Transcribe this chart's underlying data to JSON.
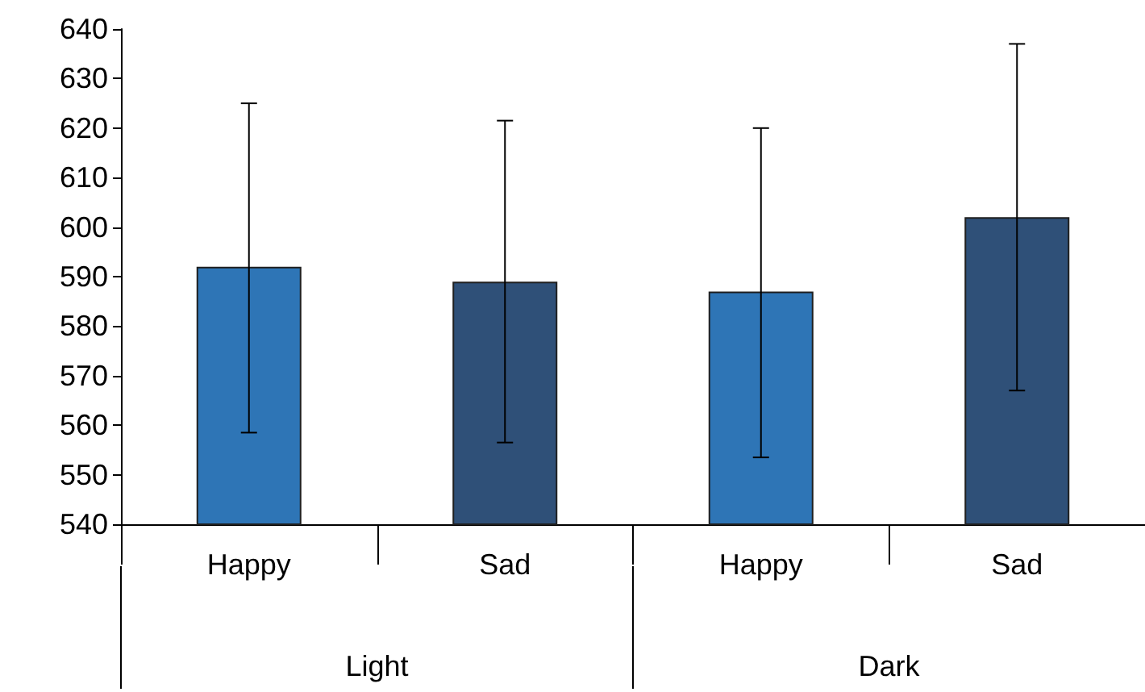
{
  "chart_data": {
    "type": "bar",
    "categories": [
      "Happy",
      "Sad",
      "Happy",
      "Sad"
    ],
    "values": [
      592,
      589,
      587,
      602
    ],
    "colors": [
      "#2e75b6",
      "#2f5078",
      "#2e75b6",
      "#2f5078"
    ],
    "errors": [
      [
        558.5,
        625
      ],
      [
        556.5,
        621.5
      ],
      [
        553.5,
        620
      ],
      [
        567,
        637
      ]
    ],
    "annotations": [
      "Light",
      "Dark"
    ],
    "ylim": [
      540,
      640
    ],
    "yticks": [
      540,
      550,
      560,
      570,
      580,
      590,
      600,
      610,
      620,
      630,
      640
    ],
    "grid": false
  }
}
